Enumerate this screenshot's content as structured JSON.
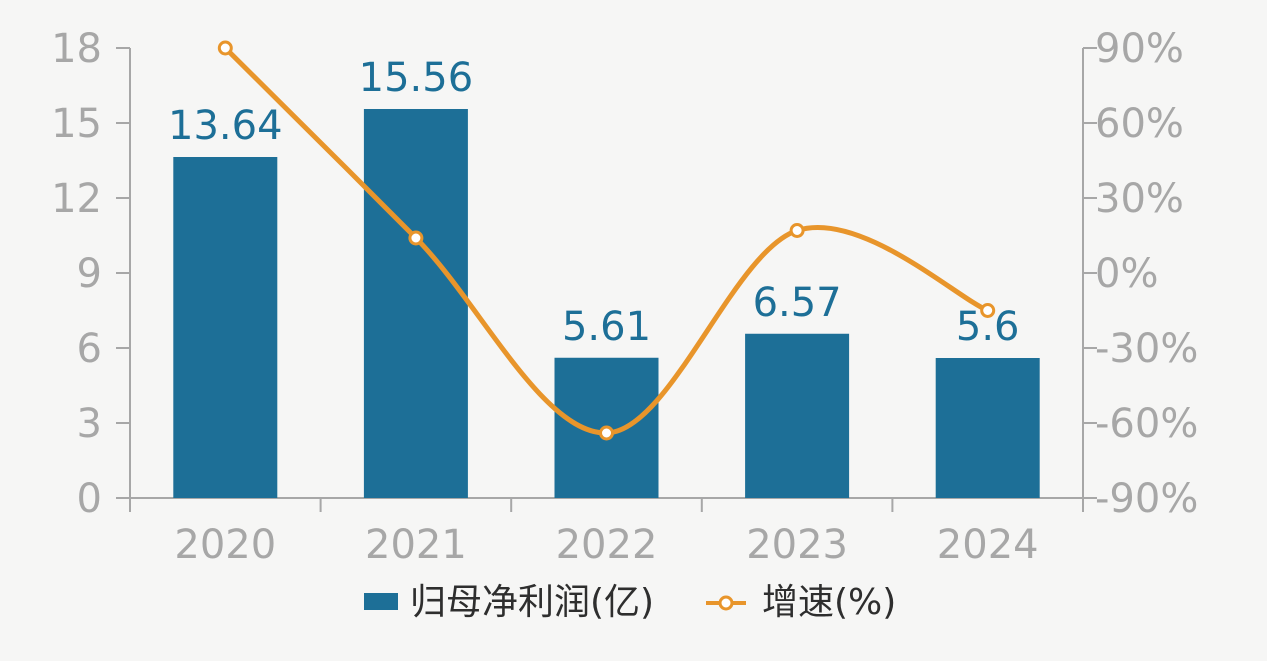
{
  "chart_data": {
    "type": "bar",
    "categories": [
      "2020",
      "2021",
      "2022",
      "2023",
      "2024"
    ],
    "series": [
      {
        "name": "归母净利润(亿)",
        "type": "bar",
        "axis": "left",
        "color": "#1d6f97",
        "values": [
          13.64,
          15.56,
          5.61,
          6.57,
          5.6
        ],
        "labels": [
          "13.64",
          "15.56",
          "5.61",
          "6.57",
          "5.6"
        ]
      },
      {
        "name": "增速(%)",
        "type": "line",
        "axis": "right",
        "smooth": true,
        "color": "#e8952b",
        "values": [
          90,
          14,
          -64,
          17,
          -15
        ]
      }
    ],
    "y_left": {
      "min": 0,
      "max": 18,
      "ticks": [
        0,
        3,
        6,
        9,
        12,
        15,
        18
      ],
      "tick_labels": [
        "0",
        "3",
        "6",
        "9",
        "12",
        "15",
        "18"
      ]
    },
    "y_right": {
      "min": -90,
      "max": 90,
      "ticks": [
        -90,
        -60,
        -30,
        0,
        30,
        60,
        90
      ],
      "tick_labels": [
        "-90%",
        "-60%",
        "-30%",
        "0%",
        "30%",
        "60%",
        "90%"
      ]
    },
    "title": "",
    "xlabel": "",
    "ylabel": "",
    "grid": false,
    "legend_position": "bottom-center"
  },
  "colors": {
    "bar": "#1d6f97",
    "line": "#e8952b",
    "axis": "#a7a7a7",
    "background": "#f6f6f5"
  }
}
